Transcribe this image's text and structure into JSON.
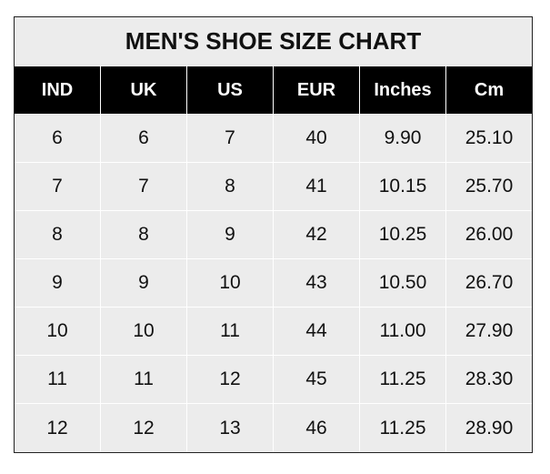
{
  "title": "MEN'S SHOE SIZE CHART",
  "headers": [
    "IND",
    "UK",
    "US",
    "EUR",
    "Inches",
    "Cm"
  ],
  "rows": [
    [
      "6",
      "6",
      "7",
      "40",
      "9.90",
      "25.10"
    ],
    [
      "7",
      "7",
      "8",
      "41",
      "10.15",
      "25.70"
    ],
    [
      "8",
      "8",
      "9",
      "42",
      "10.25",
      "26.00"
    ],
    [
      "9",
      "9",
      "10",
      "43",
      "10.50",
      "26.70"
    ],
    [
      "10",
      "10",
      "11",
      "44",
      "11.00",
      "27.90"
    ],
    [
      "11",
      "11",
      "12",
      "45",
      "11.25",
      "28.30"
    ],
    [
      "12",
      "12",
      "13",
      "46",
      "11.25",
      "28.90"
    ]
  ],
  "colors": {
    "header_bg": "#000000",
    "body_bg": "#ececec",
    "grid": "#ffffff"
  }
}
